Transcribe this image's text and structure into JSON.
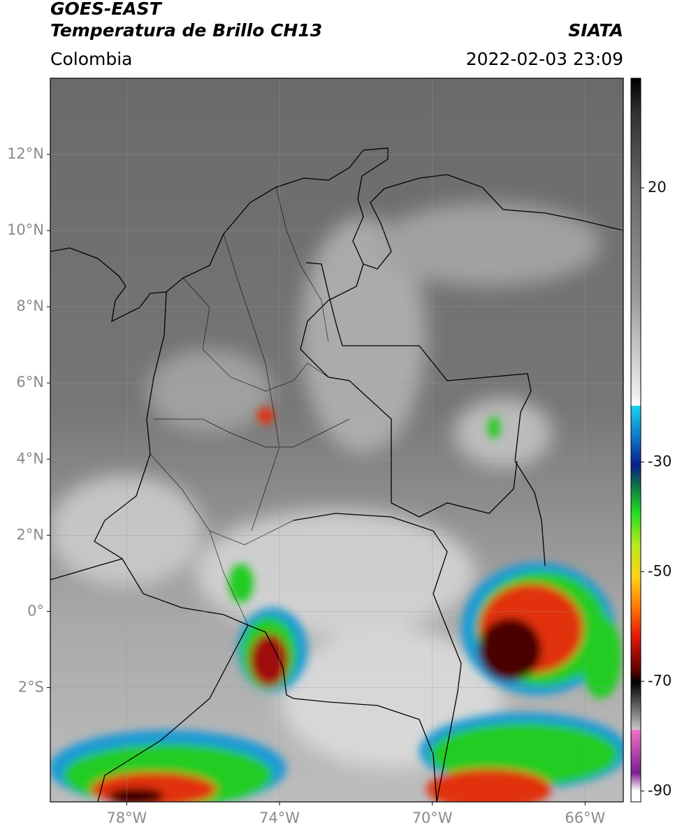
{
  "header": {
    "title": "GOES-EAST",
    "subtitle": "Temperatura de Brillo CH13",
    "source": "SIATA",
    "region": "Colombia",
    "timestamp": "2022-02-03 23:09"
  },
  "map": {
    "lat_range": [
      -5,
      14
    ],
    "lon_range": [
      -80,
      -65
    ],
    "lat_ticks": [
      {
        "value": 12,
        "label": "12°N"
      },
      {
        "value": 10,
        "label": "10°N"
      },
      {
        "value": 8,
        "label": "8°N"
      },
      {
        "value": 6,
        "label": "6°N"
      },
      {
        "value": 4,
        "label": "4°N"
      },
      {
        "value": 2,
        "label": "2°N"
      },
      {
        "value": 0,
        "label": "0°"
      },
      {
        "value": -2,
        "label": "2°S"
      }
    ],
    "lon_ticks": [
      {
        "value": -78,
        "label": "78°W"
      },
      {
        "value": -74,
        "label": "74°W"
      },
      {
        "value": -70,
        "label": "70°W"
      },
      {
        "value": -66,
        "label": "66°W"
      }
    ]
  },
  "colorbar": {
    "range": [
      -92,
      40
    ],
    "ticks": [
      20,
      -30,
      -50,
      -70,
      -90
    ]
  }
}
